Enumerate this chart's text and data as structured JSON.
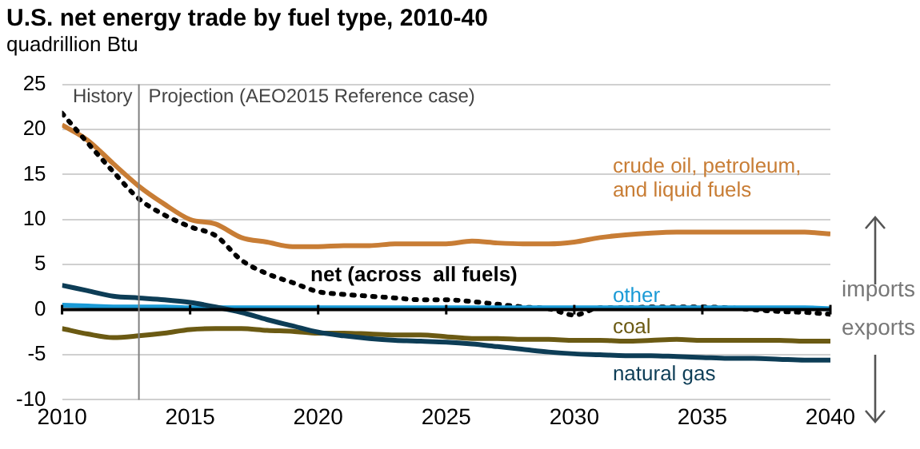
{
  "chart_data": {
    "type": "line",
    "title": "U.S. net energy trade by fuel type, 2010-40",
    "subtitle": "quadrillion Btu",
    "x": [
      2010,
      2011,
      2012,
      2013,
      2014,
      2015,
      2016,
      2017,
      2018,
      2019,
      2020,
      2021,
      2022,
      2023,
      2024,
      2025,
      2026,
      2027,
      2028,
      2029,
      2030,
      2031,
      2032,
      2033,
      2034,
      2035,
      2036,
      2037,
      2038,
      2039,
      2040
    ],
    "series": [
      {
        "name": "crude oil, petroleum, and liquid fuels",
        "color": "#c87d35",
        "values": [
          20.5,
          18.8,
          16.2,
          13.7,
          11.7,
          10,
          9.5,
          8,
          7.5,
          7,
          7,
          7.1,
          7.1,
          7.3,
          7.3,
          7.3,
          7.6,
          7.4,
          7.3,
          7.3,
          7.5,
          8,
          8.3,
          8.5,
          8.6,
          8.6,
          8.6,
          8.6,
          8.6,
          8.6,
          8.4
        ]
      },
      {
        "name": "net (across  all fuels)",
        "color": "#000000",
        "line_style": "dotted",
        "values": [
          21.8,
          18.5,
          15.3,
          12.3,
          10.5,
          9.2,
          8.2,
          5.5,
          4,
          3,
          2,
          1.7,
          1.5,
          1.3,
          1.1,
          1.1,
          0.9,
          0.6,
          0.3,
          0.1,
          -0.6,
          0.2,
          0.2,
          0.3,
          0.3,
          0.3,
          0.2,
          0,
          -0.2,
          -0.3,
          -0.5
        ]
      },
      {
        "name": "other",
        "color": "#1a9ad6",
        "values": [
          0.5,
          0.4,
          0.3,
          0.3,
          0.3,
          0.2,
          0.2,
          0.2,
          0.2,
          0.2,
          0.2,
          0.2,
          0.2,
          0.2,
          0.2,
          0.2,
          0.2,
          0.2,
          0.2,
          0.2,
          0.2,
          0.2,
          0.2,
          0.2,
          0.2,
          0.2,
          0.2,
          0.2,
          0.2,
          0.2,
          0.1
        ]
      },
      {
        "name": "coal",
        "color": "#6b5a13",
        "values": [
          -2.1,
          -2.7,
          -3.1,
          -2.9,
          -2.6,
          -2.2,
          -2.1,
          -2.1,
          -2.3,
          -2.4,
          -2.6,
          -2.6,
          -2.7,
          -2.8,
          -2.8,
          -3,
          -3.2,
          -3.2,
          -3.3,
          -3.3,
          -3.4,
          -3.4,
          -3.5,
          -3.4,
          -3.3,
          -3.4,
          -3.4,
          -3.4,
          -3.4,
          -3.5,
          -3.5
        ]
      },
      {
        "name": "natural gas",
        "color": "#0d3d56",
        "values": [
          2.7,
          2.1,
          1.5,
          1.3,
          1.1,
          0.8,
          0.3,
          -0.3,
          -1.1,
          -1.8,
          -2.5,
          -2.9,
          -3.2,
          -3.4,
          -3.5,
          -3.6,
          -3.8,
          -4.1,
          -4.4,
          -4.7,
          -4.9,
          -5,
          -5.1,
          -5.1,
          -5.2,
          -5.3,
          -5.4,
          -5.4,
          -5.5,
          -5.6,
          -5.6
        ]
      }
    ],
    "xlim": [
      2010,
      2040
    ],
    "xticks": [
      2010,
      2015,
      2020,
      2025,
      2030,
      2035,
      2040
    ],
    "ylim": [
      -10,
      25
    ],
    "yticks": [
      -10,
      -5,
      0,
      5,
      10,
      15,
      20,
      25
    ],
    "grid": "y",
    "legend": false,
    "marker": "none",
    "line_style": "solid",
    "ref_lines": [
      {
        "axis": "x",
        "value": 2013,
        "label": "Projection (AEO2015 Reference case)",
        "color": "#808080"
      }
    ],
    "annotations": [
      "History",
      "imports",
      "exports"
    ]
  }
}
